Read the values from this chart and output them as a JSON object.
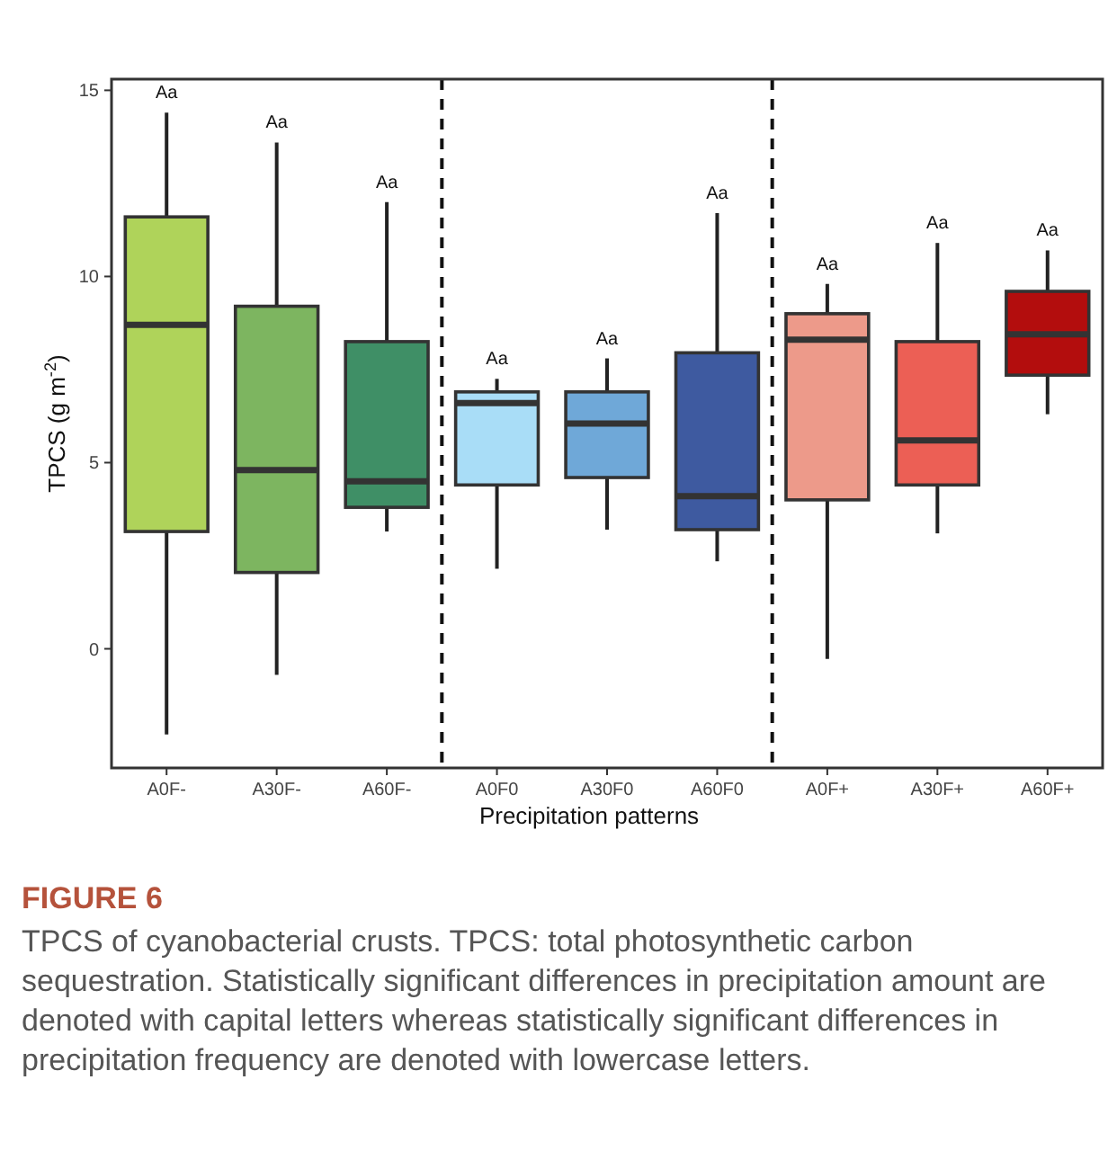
{
  "chart_data": {
    "type": "box",
    "xlabel": "Precipitation patterns",
    "ylabel": "TPCS (g m$^{-2}$)",
    "categories": [
      "A0F-",
      "A30F-",
      "A60F-",
      "A0F0",
      "A30F0",
      "A60F0",
      "A0F+",
      "A30F+",
      "A60F+"
    ],
    "colors": [
      "#afd35a",
      "#7db560",
      "#3f8f66",
      "#a9ddf7",
      "#6fa8d8",
      "#3e5aa0",
      "#ed9a8a",
      "#ec5f55",
      "#b30d0d"
    ],
    "boxes": [
      {
        "low": -2.3,
        "q1": 3.15,
        "median": 8.7,
        "q3": 11.6,
        "high": 14.4
      },
      {
        "low": -0.7,
        "q1": 2.05,
        "median": 4.8,
        "q3": 9.2,
        "high": 13.6
      },
      {
        "low": 3.15,
        "q1": 3.8,
        "median": 4.5,
        "q3": 8.25,
        "high": 12.0
      },
      {
        "low": 2.15,
        "q1": 4.4,
        "median": 6.6,
        "q3": 6.9,
        "high": 7.25
      },
      {
        "low": 3.2,
        "q1": 4.6,
        "median": 6.05,
        "q3": 6.9,
        "high": 7.8
      },
      {
        "low": 2.35,
        "q1": 3.2,
        "median": 4.1,
        "q3": 7.95,
        "high": 11.7
      },
      {
        "low": -0.27,
        "q1": 4.0,
        "median": 8.3,
        "q3": 9.0,
        "high": 9.8
      },
      {
        "low": 3.1,
        "q1": 4.4,
        "median": 5.6,
        "q3": 8.25,
        "high": 10.9
      },
      {
        "low": 6.3,
        "q1": 7.35,
        "median": 8.45,
        "q3": 9.6,
        "high": 10.7
      }
    ],
    "ylim": [
      -3.2,
      15.3
    ],
    "yticks": [
      0,
      5,
      10,
      15
    ],
    "grid": false,
    "annotations": [
      {
        "text": "Aa",
        "x": "A0F-",
        "y": 14.4
      },
      {
        "text": "Aa",
        "x": "A30F-",
        "y": 13.6
      },
      {
        "text": "Aa",
        "x": "A60F-",
        "y": 12.0
      },
      {
        "text": "Aa",
        "x": "A0F0",
        "y": 7.25
      },
      {
        "text": "Aa",
        "x": "A30F0",
        "y": 7.8
      },
      {
        "text": "Aa",
        "x": "A60F0",
        "y": 11.7
      },
      {
        "text": "Aa",
        "x": "A0F+",
        "y": 9.8
      },
      {
        "text": "Aa",
        "x": "A30F+",
        "y": 10.9
      },
      {
        "text": "Aa",
        "x": "A60F+",
        "y": 10.7
      },
      "FIGURE 6",
      "TPCS of cyanobacterial crusts. TPCS: total photosynthetic carbon sequestration. Statistically significant differences in precipitation amount are denoted with capital letters whereas statistically significant differences in precipitation frequency are denoted with lowercase letters."
    ]
  }
}
